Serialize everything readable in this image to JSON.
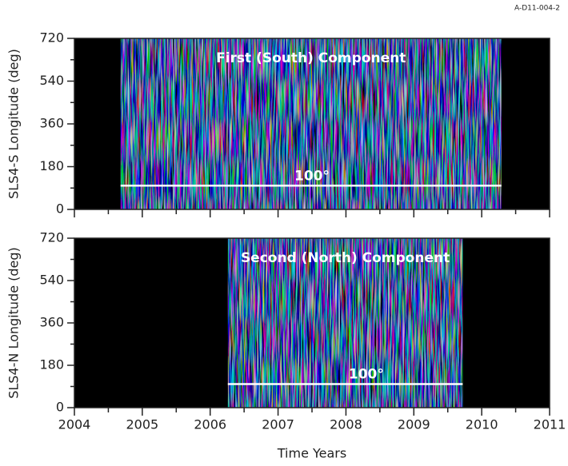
{
  "figure_id": "A-D11-004-2",
  "chart_data": [
    {
      "type": "heatmap",
      "annotation": "First (South) Component",
      "ylabel": "SLS4-S Longitude (deg)",
      "xlim": [
        2004,
        2011
      ],
      "xticks": [
        2004,
        2005,
        2006,
        2007,
        2008,
        2009,
        2010,
        2011
      ],
      "xminorticks": [
        2004.5,
        2005.5,
        2006.5,
        2007.5,
        2008.5,
        2009.5,
        2010.5
      ],
      "xticklabels": false,
      "ylim": [
        0,
        720
      ],
      "yticks": [
        0,
        180,
        360,
        540,
        720
      ],
      "yminorticks": [
        90,
        270,
        450,
        630
      ],
      "coverage": [
        2004.68,
        2010.29
      ],
      "reference_line": {
        "y": 100,
        "x": [
          2004.68,
          2010.29
        ],
        "label": "100°",
        "label_x": 2007.5,
        "color": "#ffffff"
      },
      "background": "#000000"
    },
    {
      "type": "heatmap",
      "annotation": "Second (North) Component",
      "ylabel": "SLS4-N Longitude (deg)",
      "xlabel": "Time Years",
      "xlim": [
        2004,
        2011
      ],
      "xticks": [
        2004,
        2005,
        2006,
        2007,
        2008,
        2009,
        2010,
        2011
      ],
      "xminorticks": [
        2004.5,
        2005.5,
        2006.5,
        2007.5,
        2008.5,
        2009.5,
        2010.5
      ],
      "xticklabels": true,
      "ylim": [
        0,
        720
      ],
      "yticks": [
        0,
        180,
        360,
        540,
        720
      ],
      "yminorticks": [
        90,
        270,
        450,
        630
      ],
      "coverage": [
        2006.26,
        2009.72
      ],
      "reference_line": {
        "y": 100,
        "x": [
          2006.26,
          2009.72
        ],
        "label": "100°",
        "label_x": 2008.3,
        "color": "#ffffff"
      },
      "background": "#000000"
    }
  ]
}
